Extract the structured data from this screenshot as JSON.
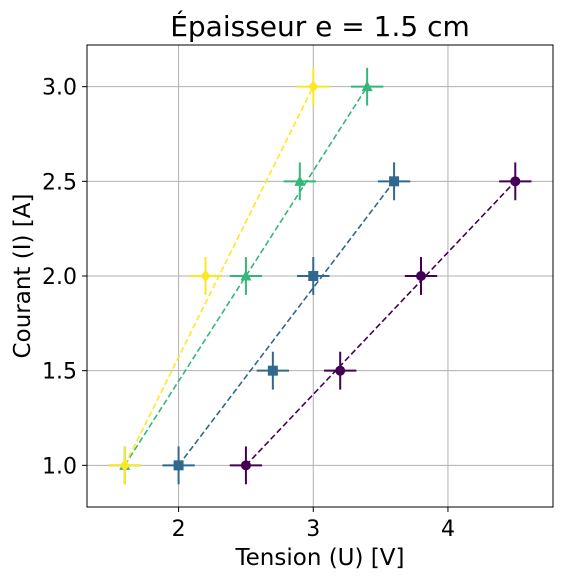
{
  "chart_data": {
    "type": "scatter",
    "title": "Épaisseur e = 1.5 cm",
    "xlabel": "Tension (U) [V]",
    "ylabel": "Courant (I) [A]",
    "xlim": [
      1.32,
      4.78
    ],
    "ylim": [
      0.78,
      3.22
    ],
    "xticks": [
      2,
      3,
      4
    ],
    "yticks": [
      1.0,
      1.5,
      2.0,
      2.5,
      3.0
    ],
    "xtick_labels": [
      "2",
      "3",
      "4"
    ],
    "ytick_labels": [
      "1.0",
      "1.5",
      "2.0",
      "2.5",
      "3.0"
    ],
    "grid": true,
    "error_x": 0.12,
    "error_y": 0.1,
    "series": [
      {
        "color": "#440154",
        "marker": "circle",
        "points": [
          {
            "x": 2.5,
            "y": 1.0
          },
          {
            "x": 3.2,
            "y": 1.5
          },
          {
            "x": 3.8,
            "y": 2.0
          },
          {
            "x": 4.5,
            "y": 2.5
          }
        ],
        "fit": {
          "x1": 2.5,
          "y1": 1.0,
          "x2": 4.5,
          "y2": 2.5
        }
      },
      {
        "color": "#31688e",
        "marker": "square",
        "points": [
          {
            "x": 2.0,
            "y": 1.0
          },
          {
            "x": 2.7,
            "y": 1.5
          },
          {
            "x": 3.0,
            "y": 2.0
          },
          {
            "x": 3.6,
            "y": 2.5
          }
        ],
        "fit": {
          "x1": 2.0,
          "y1": 1.0,
          "x2": 3.6,
          "y2": 2.5
        }
      },
      {
        "color": "#35b779",
        "marker": "triangle",
        "points": [
          {
            "x": 1.6,
            "y": 1.0
          },
          {
            "x": 2.5,
            "y": 2.0
          },
          {
            "x": 2.9,
            "y": 2.5
          },
          {
            "x": 3.4,
            "y": 3.0
          }
        ],
        "fit": {
          "x1": 1.6,
          "y1": 1.0,
          "x2": 3.4,
          "y2": 3.0
        }
      },
      {
        "color": "#fde725",
        "marker": "diamond",
        "points": [
          {
            "x": 1.6,
            "y": 1.0
          },
          {
            "x": 2.2,
            "y": 2.0
          },
          {
            "x": 3.0,
            "y": 3.0
          }
        ],
        "fit": {
          "x1": 1.6,
          "y1": 1.0,
          "x2": 3.0,
          "y2": 3.0
        }
      }
    ]
  }
}
